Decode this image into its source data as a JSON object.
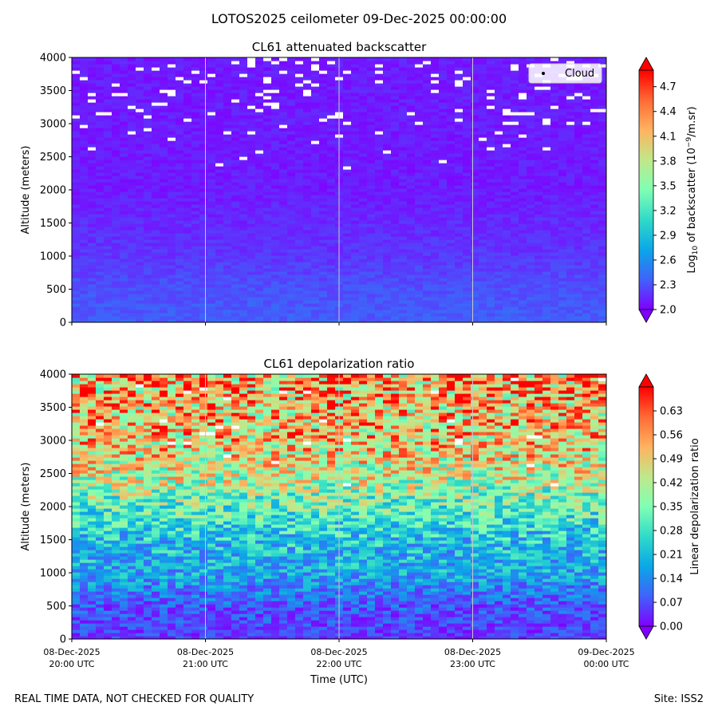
{
  "figure": {
    "suptitle": "LOTOS2025 ceilometer 09-Dec-2025 00:00:00",
    "footer_left": "REAL TIME DATA, NOT CHECKED FOR QUALITY",
    "footer_right": "Site: ISS2",
    "xlabel": "Time (UTC)"
  },
  "chart_data": [
    {
      "type": "heatmap",
      "title": "CL61 attenuated backscatter",
      "ylabel": "Altitude (meters)",
      "ylim": [
        0,
        4000
      ],
      "yticks": [
        "0",
        "500",
        "1000",
        "1500",
        "2000",
        "2500",
        "3000",
        "3500",
        "4000"
      ],
      "x_tick_labels": [],
      "colorbar": {
        "label_prefix": "Log",
        "label_sub": "10",
        "label_mid": " of backscatter (10",
        "label_sup": "−9",
        "label_suffix": "/m.sr)",
        "range": [
          2.0,
          4.9
        ],
        "ticks": [
          "2.0",
          "2.3",
          "2.6",
          "2.9",
          "3.2",
          "3.5",
          "3.8",
          "4.1",
          "4.4",
          "4.7"
        ],
        "extend": "both"
      },
      "legend": {
        "entries": [
          "Cloud"
        ],
        "position": "top-right"
      },
      "description_profile": {
        "altitude_m": [
          0,
          500,
          1000,
          1500,
          2000,
          2500,
          3000,
          3500,
          4000
        ],
        "typical_log10_backscatter": [
          2.35,
          2.3,
          2.2,
          2.15,
          2.1,
          2.1,
          2.1,
          2.1,
          2.1
        ]
      }
    },
    {
      "type": "heatmap",
      "title": "CL61 depolarization ratio",
      "ylabel": "Altitude (meters)",
      "ylim": [
        0,
        4000
      ],
      "yticks": [
        "0",
        "500",
        "1000",
        "1500",
        "2000",
        "2500",
        "3000",
        "3500",
        "4000"
      ],
      "x_tick_labels": [
        [
          "08-Dec-2025",
          "20:00 UTC"
        ],
        [
          "08-Dec-2025",
          "21:00 UTC"
        ],
        [
          "08-Dec-2025",
          "22:00 UTC"
        ],
        [
          "08-Dec-2025",
          "23:00 UTC"
        ],
        [
          "09-Dec-2025",
          "00:00 UTC"
        ]
      ],
      "x_range_hours": [
        0,
        4
      ],
      "colorbar": {
        "label": "Linear depolarization ratio",
        "range": [
          0.0,
          0.7
        ],
        "ticks": [
          "0.00",
          "0.07",
          "0.14",
          "0.21",
          "0.28",
          "0.35",
          "0.42",
          "0.49",
          "0.56",
          "0.63"
        ],
        "extend": "both"
      },
      "description_profile": {
        "altitude_m": [
          0,
          500,
          1000,
          1500,
          2000,
          2500,
          3000,
          3500,
          4000
        ],
        "typical_depol_ratio": [
          0.05,
          0.08,
          0.18,
          0.22,
          0.32,
          0.44,
          0.5,
          0.52,
          0.55
        ]
      }
    }
  ]
}
